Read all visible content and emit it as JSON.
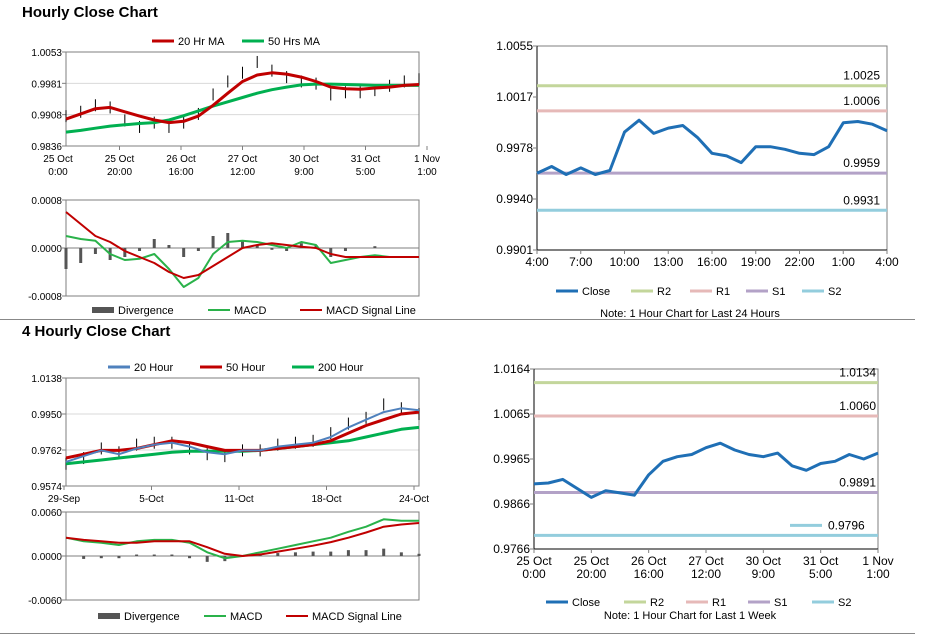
{
  "sections": {
    "hourly_title": "Hourly Close Chart",
    "four_hourly_title": "4 Hourly Close Chart"
  },
  "colors": {
    "close": "#1f6fb5",
    "r2": "#c3d69b",
    "r1": "#e6b9b8",
    "s1": "#b3a2c7",
    "s2": "#93cddd",
    "ma_short": "#c00000",
    "ma_long": "#00b050",
    "ma_20hour": "#4f81bd",
    "macd": "#2ab24a",
    "signal": "#c00000",
    "divergence": "#555555"
  },
  "chart_data": [
    {
      "id": "hourly_price",
      "type": "line",
      "title": "",
      "xlabel": "",
      "ylabel": "",
      "ylim": [
        0.9836,
        1.0053
      ],
      "y_ticks": [
        "1.0053",
        "0.9981",
        "0.9908",
        "0.9836"
      ],
      "x_ticks": [
        [
          "25 Oct",
          "0:00"
        ],
        [
          "25 Oct",
          "20:00"
        ],
        [
          "26 Oct",
          "16:00"
        ],
        [
          "27 Oct",
          "12:00"
        ],
        [
          "30 Oct",
          "9:00"
        ],
        [
          "31 Oct",
          "5:00"
        ],
        [
          "1 Nov",
          "1:00"
        ]
      ],
      "legend": [
        "20 Hr MA",
        "50 Hrs MA"
      ],
      "legend_position": "top",
      "series": [
        {
          "name": "20 Hr MA",
          "values": [
            0.9898,
            0.991,
            0.9922,
            0.9925,
            0.9915,
            0.9905,
            0.9896,
            0.989,
            0.9893,
            0.9905,
            0.993,
            0.9958,
            0.9985,
            1.0,
            1.0005,
            1.0002,
            0.9995,
            0.9985,
            0.9972,
            0.9968,
            0.9967,
            0.997,
            0.9972,
            0.9976,
            0.9978
          ]
        },
        {
          "name": "50 Hrs MA",
          "values": [
            0.9868,
            0.9872,
            0.9877,
            0.9882,
            0.9885,
            0.9888,
            0.989,
            0.9896,
            0.9906,
            0.9917,
            0.9928,
            0.9938,
            0.9948,
            0.9958,
            0.9966,
            0.9972,
            0.9977,
            0.9979,
            0.9979,
            0.9978,
            0.9977,
            0.9976,
            0.9976,
            0.9976,
            0.9976
          ]
        },
        {
          "name": "price",
          "values": [
            0.9905,
            0.9915,
            0.993,
            0.9925,
            0.9895,
            0.988,
            0.989,
            0.988,
            0.989,
            0.991,
            0.9955,
            0.9985,
            1.0005,
            1.003,
            1.001,
            0.9995,
            0.9985,
            0.998,
            0.9955,
            0.996,
            0.996,
            0.9965,
            0.9975,
            0.9985,
            0.999
          ]
        }
      ]
    },
    {
      "id": "hourly_macd",
      "type": "line",
      "ylim": [
        -0.0008,
        0.0008
      ],
      "y_ticks": [
        "0.0008",
        "0.0000",
        "-0.0008"
      ],
      "legend": [
        "Divergence",
        "MACD",
        "MACD Signal Line"
      ],
      "legend_position": "bottom",
      "series": [
        {
          "name": "MACD",
          "values": [
            0.0002,
            0.00015,
            0.00012,
            -0.0001,
            -0.0002,
            -0.00018,
            -0.0001,
            -0.00035,
            -0.00065,
            -0.0005,
            -0.0001,
            0.0001,
            0.00012,
            0.0001,
            5e-05,
            0.0,
            0.0001,
            5e-05,
            -0.00025,
            -0.0002,
            -0.00015,
            -0.00012,
            -0.00015,
            -0.00015,
            -0.00015
          ]
        },
        {
          "name": "MACD Signal Line",
          "values": [
            0.0006,
            0.0004,
            0.0002,
            0.0001,
            -5e-05,
            -0.00015,
            -0.00025,
            -0.0004,
            -0.0005,
            -0.00045,
            -0.0003,
            -0.00015,
            0.0,
            5e-05,
            8e-05,
            5e-05,
            2e-05,
            0.0,
            -0.0001,
            -0.00015,
            -0.00015,
            -0.00015,
            -0.00015,
            -0.00015,
            -0.00015
          ]
        },
        {
          "name": "Divergence",
          "values": [
            -0.00035,
            -0.00025,
            -0.0001,
            -0.0002,
            -0.00015,
            -5e-05,
            0.00015,
            5e-05,
            -0.00015,
            -5e-05,
            0.0002,
            0.00025,
            0.00012,
            5e-05,
            -3e-05,
            -5e-05,
            8e-05,
            5e-05,
            -0.00015,
            -5e-05,
            0.0,
            3e-05,
            0.0,
            0.0,
            0.0
          ]
        }
      ]
    },
    {
      "id": "hourly_levels",
      "type": "line",
      "ylim": [
        0.9901,
        1.0055
      ],
      "y_ticks": [
        "1.0055",
        "1.0017",
        "0.9978",
        "0.9940",
        "0.9901"
      ],
      "x_ticks": [
        "4:00",
        "7:00",
        "10:00",
        "13:00",
        "16:00",
        "19:00",
        "22:00",
        "1:00",
        "4:00"
      ],
      "legend": [
        "Close",
        "R2",
        "R1",
        "S1",
        "S2"
      ],
      "legend_position": "bottom",
      "note": "Note: 1 Hour Chart for Last 24 Hours",
      "levels": [
        {
          "name": "R2",
          "value": 1.0025,
          "label": "1.0025"
        },
        {
          "name": "R1",
          "value": 1.0006,
          "label": "1.0006"
        },
        {
          "name": "S1",
          "value": 0.9959,
          "label": "0.9959"
        },
        {
          "name": "S2",
          "value": 0.9931,
          "label": "0.9931"
        }
      ],
      "series": [
        {
          "name": "Close",
          "values": [
            0.9959,
            0.9964,
            0.9958,
            0.9963,
            0.9958,
            0.9961,
            0.999,
            0.9999,
            0.9989,
            0.9993,
            0.9995,
            0.9986,
            0.9974,
            0.9972,
            0.9967,
            0.9979,
            0.9979,
            0.9977,
            0.9974,
            0.9973,
            0.9979,
            0.9997,
            0.9998,
            0.9996,
            0.9991
          ]
        }
      ]
    },
    {
      "id": "four_hourly_price",
      "type": "line",
      "ylim": [
        0.9574,
        1.0138
      ],
      "y_ticks": [
        "1.0138",
        "0.9950",
        "0.9762",
        "0.9574"
      ],
      "x_ticks": [
        "29-Sep",
        "5-Oct",
        "11-Oct",
        "18-Oct",
        "24-Oct"
      ],
      "legend": [
        "20 Hour",
        "50 Hour",
        "200 Hour"
      ],
      "legend_position": "top",
      "series": [
        {
          "name": "20 Hour",
          "values": [
            0.97,
            0.973,
            0.976,
            0.974,
            0.977,
            0.979,
            0.98,
            0.978,
            0.975,
            0.974,
            0.976,
            0.976,
            0.978,
            0.979,
            0.98,
            0.983,
            0.988,
            0.992,
            0.996,
            0.998,
            0.997
          ]
        },
        {
          "name": "50 Hour",
          "values": [
            0.972,
            0.974,
            0.976,
            0.976,
            0.977,
            0.979,
            0.981,
            0.98,
            0.978,
            0.976,
            0.976,
            0.976,
            0.977,
            0.978,
            0.979,
            0.981,
            0.985,
            0.989,
            0.992,
            0.995,
            0.996
          ]
        },
        {
          "name": "200 Hour",
          "values": [
            0.969,
            0.97,
            0.971,
            0.972,
            0.973,
            0.974,
            0.975,
            0.9755,
            0.9755,
            0.9755,
            0.9755,
            0.976,
            0.977,
            0.978,
            0.979,
            0.98,
            0.981,
            0.983,
            0.985,
            0.987,
            0.988
          ]
        },
        {
          "name": "price",
          "values": [
            0.969,
            0.972,
            0.977,
            0.975,
            0.979,
            0.98,
            0.98,
            0.977,
            0.974,
            0.973,
            0.976,
            0.976,
            0.979,
            0.98,
            0.981,
            0.985,
            0.99,
            0.993,
            1.0,
            0.998,
            0.995
          ]
        }
      ]
    },
    {
      "id": "four_hourly_macd",
      "type": "line",
      "ylim": [
        -0.006,
        0.006
      ],
      "y_ticks": [
        "0.0060",
        "0.0000",
        "-0.0060"
      ],
      "legend": [
        "Divergence",
        "MACD",
        "MACD Signal Line"
      ],
      "legend_position": "bottom",
      "series": [
        {
          "name": "MACD",
          "values": [
            0.0025,
            0.002,
            0.0018,
            0.0015,
            0.002,
            0.0022,
            0.0022,
            0.0018,
            0.0005,
            -0.0003,
            0.0,
            0.0005,
            0.001,
            0.0015,
            0.002,
            0.0025,
            0.0033,
            0.004,
            0.005,
            0.0048,
            0.0048
          ]
        },
        {
          "name": "MACD Signal Line",
          "values": [
            0.0025,
            0.0022,
            0.002,
            0.0018,
            0.0018,
            0.002,
            0.002,
            0.002,
            0.0012,
            0.0003,
            0.0,
            0.0002,
            0.0006,
            0.001,
            0.0014,
            0.0019,
            0.0025,
            0.0032,
            0.004,
            0.0043,
            0.0045
          ]
        },
        {
          "name": "Divergence",
          "values": [
            0.0,
            -0.0004,
            -0.0003,
            -0.0003,
            0.0002,
            0.0002,
            0.0002,
            -0.0003,
            -0.0008,
            -0.0007,
            0.0,
            0.0003,
            0.0004,
            0.0005,
            0.0006,
            0.0006,
            0.0008,
            0.0008,
            0.001,
            0.0005,
            0.0003
          ]
        }
      ]
    },
    {
      "id": "four_hourly_levels",
      "type": "line",
      "ylim": [
        0.9766,
        1.0164
      ],
      "y_ticks": [
        "1.0164",
        "1.0065",
        "0.9965",
        "0.9866",
        "0.9766"
      ],
      "x_ticks": [
        [
          "25 Oct",
          "0:00"
        ],
        [
          "25 Oct",
          "20:00"
        ],
        [
          "26 Oct",
          "16:00"
        ],
        [
          "27 Oct",
          "12:00"
        ],
        [
          "30 Oct",
          "9:00"
        ],
        [
          "31 Oct",
          "5:00"
        ],
        [
          "1 Nov",
          "1:00"
        ]
      ],
      "legend": [
        "Close",
        "R2",
        "R1",
        "S1",
        "S2"
      ],
      "legend_position": "bottom",
      "note": "Note: 1 Hour Chart for Last 1 Week",
      "levels": [
        {
          "name": "R2",
          "value": 1.0134,
          "label": "1.0134"
        },
        {
          "name": "R1",
          "value": 1.006,
          "label": "1.0060"
        },
        {
          "name": "S1",
          "value": 0.9891,
          "label": "0.9891"
        },
        {
          "name": "S2",
          "value": 0.9796,
          "label": "0.9796"
        }
      ],
      "series": [
        {
          "name": "Close",
          "values": [
            0.991,
            0.9912,
            0.992,
            0.99,
            0.988,
            0.9895,
            0.989,
            0.9885,
            0.993,
            0.996,
            0.997,
            0.9975,
            0.999,
            1.0,
            0.9985,
            0.9975,
            0.997,
            0.9978,
            0.995,
            0.994,
            0.9955,
            0.996,
            0.9975,
            0.9965,
            0.9978
          ]
        }
      ]
    }
  ]
}
